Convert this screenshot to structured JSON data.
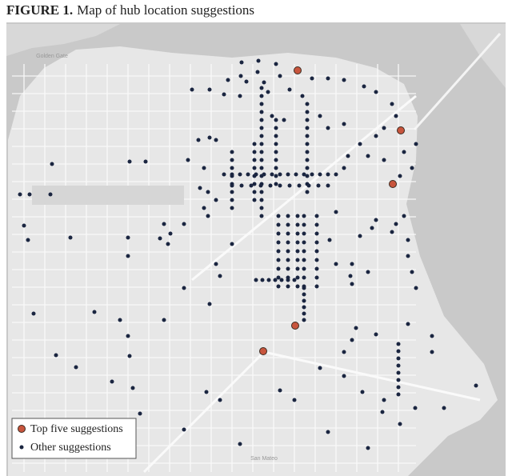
{
  "figure": {
    "label": "FIGURE 1.",
    "title": "Map of hub location suggestions"
  },
  "map": {
    "places": [
      "Golden Gate",
      "San Mateo"
    ]
  },
  "legend": [
    "Top five suggestions",
    "Other suggestions"
  ]
}
